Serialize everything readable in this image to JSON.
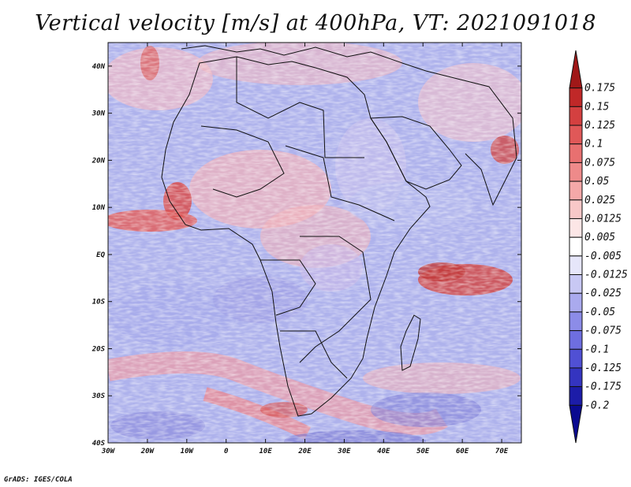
{
  "title": "Vertical velocity [m/s] at 400hPa, VT: 2021091018",
  "credit": "GrADS: IGES/COLA",
  "map": {
    "lon_range": [
      -30,
      75
    ],
    "lat_range": [
      -40,
      45
    ],
    "lat_ticks": [
      "40N",
      "30N",
      "20N",
      "10N",
      "EQ",
      "10S",
      "20S",
      "30S",
      "40S"
    ],
    "lon_ticks": [
      "30W",
      "20W",
      "10W",
      "0",
      "10E",
      "20E",
      "30E",
      "40E",
      "50E",
      "60E",
      "70E"
    ]
  },
  "colorbar": {
    "labels": [
      "0.175",
      "0.15",
      "0.125",
      "0.1",
      "0.075",
      "0.05",
      "0.025",
      "0.0125",
      "0.005",
      "-0.005",
      "-0.0125",
      "-0.025",
      "-0.05",
      "-0.075",
      "-0.1",
      "-0.125",
      "-0.175",
      "-0.2"
    ],
    "colors": [
      "#a01818",
      "#c02828",
      "#d44040",
      "#e05858",
      "#e87070",
      "#ee8a8a",
      "#f4a8a8",
      "#f8c8c8",
      "#fce6e6",
      "#ffffff",
      "#e6e6fa",
      "#c8c8f4",
      "#aaaaee",
      "#8c8ce8",
      "#6e6ee0",
      "#5050d4",
      "#3434c0",
      "#1c1ca8",
      "#0a0a90"
    ]
  }
}
